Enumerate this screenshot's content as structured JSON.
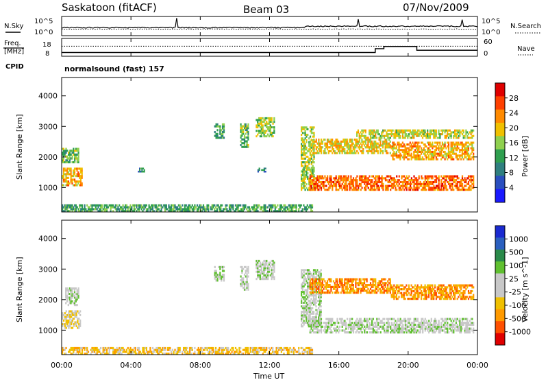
{
  "header": {
    "site": "Saskatoon (fitACF)",
    "beam": "Beam 03",
    "date": "07/Nov/2009"
  },
  "panel_labels": {
    "nsky": "N.Sky",
    "nsearch": "N.Search",
    "freq_top": "Freq.",
    "freq_unit": "[MHz]",
    "nave": "Nave",
    "cpid": "CPID",
    "cpid_value": "normalsound (fast) 157"
  },
  "colors": {
    "power_scale": [
      "#1a1aff",
      "#2a4fbf",
      "#2f7f7f",
      "#2f9f4f",
      "#8fd04f",
      "#f0c000",
      "#ff8a00",
      "#ff4000",
      "#e00000"
    ],
    "velocity_scale": [
      "#e00000",
      "#ff5000",
      "#ff9a00",
      "#f0c000",
      "#c8c8c8",
      "#c8c8c8",
      "#60c030",
      "#2a8a4a",
      "#2a5fbf",
      "#1a2ad0"
    ]
  },
  "chart_data": [
    {
      "type": "line",
      "name": "sky-search-noise",
      "left_axis_label": "N.Sky",
      "right_axis_label": "N.Search",
      "left_ticks": [
        "10^5",
        "10^0"
      ],
      "right_ticks": [
        "10^5",
        "10^0"
      ],
      "x_ticks": [
        "00:00",
        "04:00",
        "08:00",
        "12:00",
        "16:00",
        "20:00",
        "00:00"
      ],
      "xlim": [
        0,
        24
      ]
    },
    {
      "type": "line",
      "name": "frequency-nave",
      "left_axis_label": "Freq. [MHz]",
      "right_axis_label": "Nave",
      "left_ticks": [
        "18",
        "8"
      ],
      "right_ticks": [
        "60",
        "0"
      ],
      "ylim_left": [
        8,
        18
      ],
      "ylim_right": [
        0,
        60
      ],
      "freq": {
        "x": [
          0,
          1,
          4.5,
          5.7,
          9.3,
          12,
          14.5,
          17.5,
          18.1,
          18.6,
          19.7,
          20.5,
          22.5,
          23.5,
          24
        ],
        "y": [
          10.5,
          10.5,
          10.5,
          10.5,
          10.5,
          10.5,
          10.5,
          10.5,
          13.0,
          14.5,
          14.5,
          12.0,
          12.0,
          12.0,
          12.0
        ]
      },
      "nave_level": 40,
      "x_ticks": [
        "00:00",
        "04:00",
        "08:00",
        "12:00",
        "16:00",
        "20:00",
        "00:00"
      ],
      "xlim": [
        0,
        24
      ]
    },
    {
      "type": "heatmap",
      "name": "power",
      "xlabel": "Time UT",
      "ylabel": "Slant Range [km]",
      "y_ticks": [
        "4000",
        "3000",
        "2000",
        "1000"
      ],
      "ylim": [
        200,
        4600
      ],
      "xlim": [
        0,
        24
      ],
      "colorbar_label": "Power [dB]",
      "colorbar_ticks": [
        "28",
        "24",
        "20",
        "16",
        "12",
        "8",
        "4"
      ],
      "colorbar_range": [
        0,
        32
      ],
      "echo_regions": [
        {
          "t0": 0.0,
          "t1": 1.2,
          "r0": 1050,
          "r1": 1650,
          "level": 22
        },
        {
          "t0": 0.0,
          "t1": 1.0,
          "r0": 1800,
          "r1": 2300,
          "level": 14
        },
        {
          "t0": 4.4,
          "t1": 4.8,
          "r0": 1500,
          "r1": 1650,
          "level": 10
        },
        {
          "t0": 8.8,
          "t1": 9.4,
          "r0": 2600,
          "r1": 3100,
          "level": 12
        },
        {
          "t0": 10.3,
          "t1": 10.8,
          "r0": 2300,
          "r1": 3100,
          "level": 14
        },
        {
          "t0": 11.2,
          "t1": 12.3,
          "r0": 2650,
          "r1": 3300,
          "level": 16
        },
        {
          "t0": 11.3,
          "t1": 11.8,
          "r0": 1500,
          "r1": 1650,
          "level": 8
        },
        {
          "t0": 13.8,
          "t1": 14.6,
          "r0": 900,
          "r1": 3000,
          "level": 16
        },
        {
          "t0": 14.3,
          "t1": 19.0,
          "r0": 2100,
          "r1": 2600,
          "level": 20
        },
        {
          "t0": 17.0,
          "t1": 23.8,
          "r0": 2600,
          "r1": 2900,
          "level": 18
        },
        {
          "t0": 19.0,
          "t1": 23.8,
          "r0": 1900,
          "r1": 2500,
          "level": 22
        },
        {
          "t0": 14.3,
          "t1": 23.8,
          "r0": 900,
          "r1": 1400,
          "level": 26
        },
        {
          "t0": 0.0,
          "t1": 14.5,
          "r0": 200,
          "r1": 450,
          "level": 12
        }
      ]
    },
    {
      "type": "heatmap",
      "name": "velocity",
      "xlabel": "Time UT",
      "ylabel": "Slant Range [km]",
      "y_ticks": [
        "4000",
        "3000",
        "2000",
        "1000"
      ],
      "ylim": [
        200,
        4600
      ],
      "xlim": [
        0,
        24
      ],
      "x_ticks": [
        "00:00",
        "04:00",
        "08:00",
        "12:00",
        "16:00",
        "20:00",
        "00:00"
      ],
      "colorbar_label": "Velocity [m s^-1]",
      "colorbar_ticks": [
        "1000",
        "500",
        "100",
        "25",
        "-25",
        "-100",
        "-500",
        "-1000"
      ],
      "echo_regions": [
        {
          "t0": 0.0,
          "t1": 1.1,
          "r0": 1050,
          "r1": 1650,
          "level": 4
        },
        {
          "t0": 0.2,
          "t1": 1.0,
          "r0": 1800,
          "r1": 2400,
          "level": 5
        },
        {
          "t0": 8.8,
          "t1": 9.4,
          "r0": 2600,
          "r1": 3100,
          "level": 5
        },
        {
          "t0": 10.3,
          "t1": 10.8,
          "r0": 2300,
          "r1": 3100,
          "level": 5
        },
        {
          "t0": 11.2,
          "t1": 12.3,
          "r0": 2650,
          "r1": 3300,
          "level": 5
        },
        {
          "t0": 13.8,
          "t1": 15.0,
          "r0": 1100,
          "r1": 3000,
          "level": 5
        },
        {
          "t0": 14.3,
          "t1": 19.0,
          "r0": 2200,
          "r1": 2700,
          "level": 2
        },
        {
          "t0": 19.0,
          "t1": 23.8,
          "r0": 2000,
          "r1": 2500,
          "level": 2
        },
        {
          "t0": 14.3,
          "t1": 23.8,
          "r0": 900,
          "r1": 1400,
          "level": 5
        },
        {
          "t0": 0.0,
          "t1": 14.5,
          "r0": 200,
          "r1": 450,
          "level": 3
        }
      ]
    }
  ]
}
